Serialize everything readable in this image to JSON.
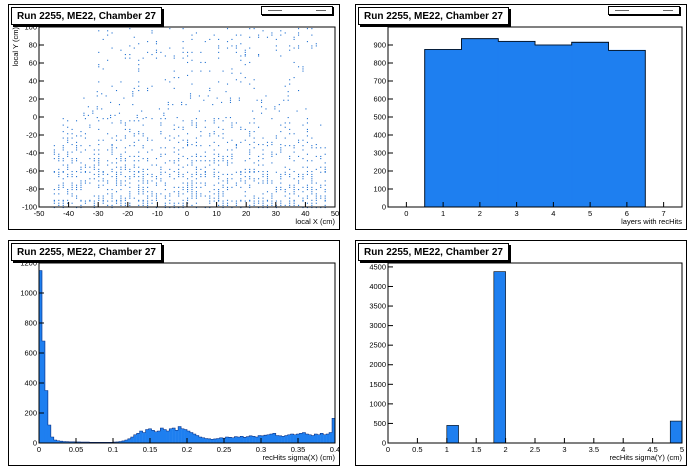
{
  "colors": {
    "fill": "#1E7FF0",
    "stroke": "#0A3F9E",
    "marker": "#1E6FD0"
  },
  "chart_data": [
    {
      "type": "scatter",
      "title": "Run 2255, ME22, Chamber 27",
      "xlabel": "local X (cm)",
      "ylabel": "local Y (cm)",
      "xlim": [
        -50,
        50
      ],
      "ylim": [
        -100,
        100
      ],
      "xticks": [
        -50,
        -40,
        -30,
        -20,
        -10,
        0,
        10,
        20,
        30,
        40,
        50
      ],
      "yticks": [
        -100,
        -80,
        -60,
        -40,
        -20,
        0,
        20,
        40,
        60,
        80,
        100
      ],
      "bands": [
        {
          "x": [
            -45,
            48
          ],
          "y": [
            -100,
            -92
          ],
          "density": 0.55
        },
        {
          "x": [
            -45,
            48
          ],
          "y": [
            -92,
            -60
          ],
          "density": 0.45
        },
        {
          "x": [
            -45,
            48
          ],
          "y": [
            -60,
            -30
          ],
          "density": 0.35
        },
        {
          "x": [
            -42,
            46
          ],
          "y": [
            -30,
            0
          ],
          "density": 0.22
        },
        {
          "x": [
            -35,
            45
          ],
          "y": [
            0,
            30
          ],
          "density": 0.12
        },
        {
          "x": [
            -30,
            40
          ],
          "y": [
            30,
            70
          ],
          "density": 0.07
        },
        {
          "x": [
            -30,
            45
          ],
          "y": [
            70,
            100
          ],
          "density": 0.12
        }
      ]
    },
    {
      "type": "bar",
      "title": "Run 2255, ME22, Chamber 27",
      "xlabel": "layers with recHits",
      "xlim": [
        -0.5,
        7.5
      ],
      "ylim": [
        0,
        1000
      ],
      "xticks": [
        0,
        1,
        2,
        3,
        4,
        5,
        6,
        7
      ],
      "yticks": [
        0,
        100,
        200,
        300,
        400,
        500,
        600,
        700,
        800,
        900
      ],
      "categories": [
        1,
        2,
        3,
        4,
        5,
        6
      ],
      "values": [
        875,
        935,
        920,
        900,
        915,
        870
      ]
    },
    {
      "type": "bar",
      "title": "Run 2255, ME22, Chamber 27",
      "xlabel": "recHits sigma(X) (cm)",
      "xlim": [
        0,
        0.4
      ],
      "ylim": [
        0,
        1200
      ],
      "xticks": [
        0,
        0.05,
        0.1,
        0.15,
        0.2,
        0.25,
        0.3,
        0.35,
        0.4
      ],
      "yticks": [
        0,
        200,
        400,
        600,
        800,
        1000,
        1200
      ],
      "binwidth": 0.004,
      "values": [
        1150,
        680,
        350,
        120,
        40,
        20,
        15,
        12,
        10,
        9,
        8,
        8,
        7,
        7,
        6,
        6,
        6,
        5,
        5,
        5,
        5,
        5,
        5,
        5,
        5,
        6,
        7,
        10,
        14,
        20,
        28,
        40,
        55,
        65,
        80,
        70,
        90,
        95,
        85,
        75,
        80,
        100,
        90,
        80,
        95,
        100,
        85,
        110,
        95,
        90,
        80,
        70,
        60,
        50,
        40,
        35,
        30,
        28,
        25,
        27,
        30,
        35,
        32,
        40,
        38,
        35,
        42,
        40,
        45,
        38,
        42,
        48,
        45,
        40,
        50,
        48,
        52,
        55,
        60,
        65,
        50,
        48,
        45,
        50,
        55,
        60,
        55,
        60,
        65,
        70,
        60,
        55,
        50,
        60,
        55,
        65,
        55,
        60,
        70,
        165
      ]
    },
    {
      "type": "bar",
      "title": "Run 2255, ME22, Chamber 27",
      "xlabel": "recHits sigma(Y) (cm)",
      "xlim": [
        0,
        5
      ],
      "ylim": [
        0,
        4600
      ],
      "xticks": [
        0,
        0.5,
        1,
        1.5,
        2,
        2.5,
        3,
        3.5,
        4,
        4.5,
        5
      ],
      "yticks": [
        0,
        500,
        1000,
        1500,
        2000,
        2500,
        3000,
        3500,
        4000,
        4500
      ],
      "bars": [
        {
          "x0": 1.0,
          "x1": 1.2,
          "value": 450
        },
        {
          "x0": 1.8,
          "x1": 2.0,
          "value": 4380
        },
        {
          "x0": 4.8,
          "x1": 5.0,
          "value": 560
        }
      ]
    }
  ]
}
